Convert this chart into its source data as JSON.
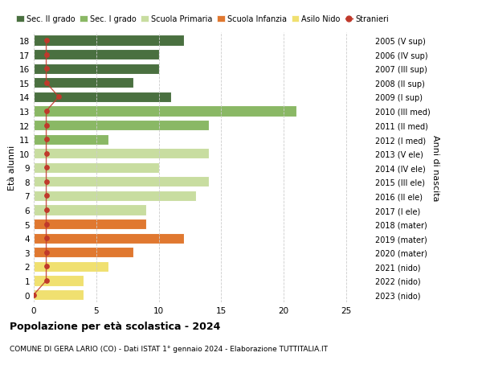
{
  "ages": [
    0,
    1,
    2,
    3,
    4,
    5,
    6,
    7,
    8,
    9,
    10,
    11,
    12,
    13,
    14,
    15,
    16,
    17,
    18
  ],
  "right_labels": [
    "2023 (nido)",
    "2022 (nido)",
    "2021 (nido)",
    "2020 (mater)",
    "2019 (mater)",
    "2018 (mater)",
    "2017 (I ele)",
    "2016 (II ele)",
    "2015 (III ele)",
    "2014 (IV ele)",
    "2013 (V ele)",
    "2012 (I med)",
    "2011 (II med)",
    "2010 (III med)",
    "2009 (I sup)",
    "2008 (II sup)",
    "2007 (III sup)",
    "2006 (IV sup)",
    "2005 (V sup)"
  ],
  "bar_values": [
    4,
    4,
    6,
    8,
    12,
    9,
    9,
    13,
    14,
    10,
    14,
    6,
    14,
    21,
    11,
    8,
    10,
    10,
    12
  ],
  "stranieri_values": [
    0,
    1,
    1,
    1,
    1,
    1,
    1,
    1,
    1,
    1,
    1,
    1,
    1,
    1,
    2,
    1,
    1,
    1,
    1
  ],
  "bar_colors": [
    "#f0e070",
    "#f0e070",
    "#f0e070",
    "#e07830",
    "#e07830",
    "#e07830",
    "#c8dda0",
    "#c8dda0",
    "#c8dda0",
    "#c8dda0",
    "#c8dda0",
    "#8ab865",
    "#8ab865",
    "#8ab865",
    "#4a7040",
    "#4a7040",
    "#4a7040",
    "#4a7040",
    "#4a7040"
  ],
  "legend_labels": [
    "Sec. II grado",
    "Sec. I grado",
    "Scuola Primaria",
    "Scuola Infanzia",
    "Asilo Nido",
    "Stranieri"
  ],
  "legend_colors": [
    "#4a7040",
    "#8ab865",
    "#c8dda0",
    "#e07830",
    "#f0e070",
    "#c0392b"
  ],
  "stranieri_color": "#c0392b",
  "title_bold": "Popolazione per età scolastica - 2024",
  "subtitle": "COMUNE DI GERA LARIO (CO) - Dati ISTAT 1° gennaio 2024 - Elaborazione TUTTITALIA.IT",
  "ylabel": "Età alunni",
  "right_axis_label": "Anni di nascita",
  "xlim": [
    0,
    27
  ],
  "grid_color": "#cccccc",
  "bar_height": 0.75,
  "bg_color": "#ffffff"
}
